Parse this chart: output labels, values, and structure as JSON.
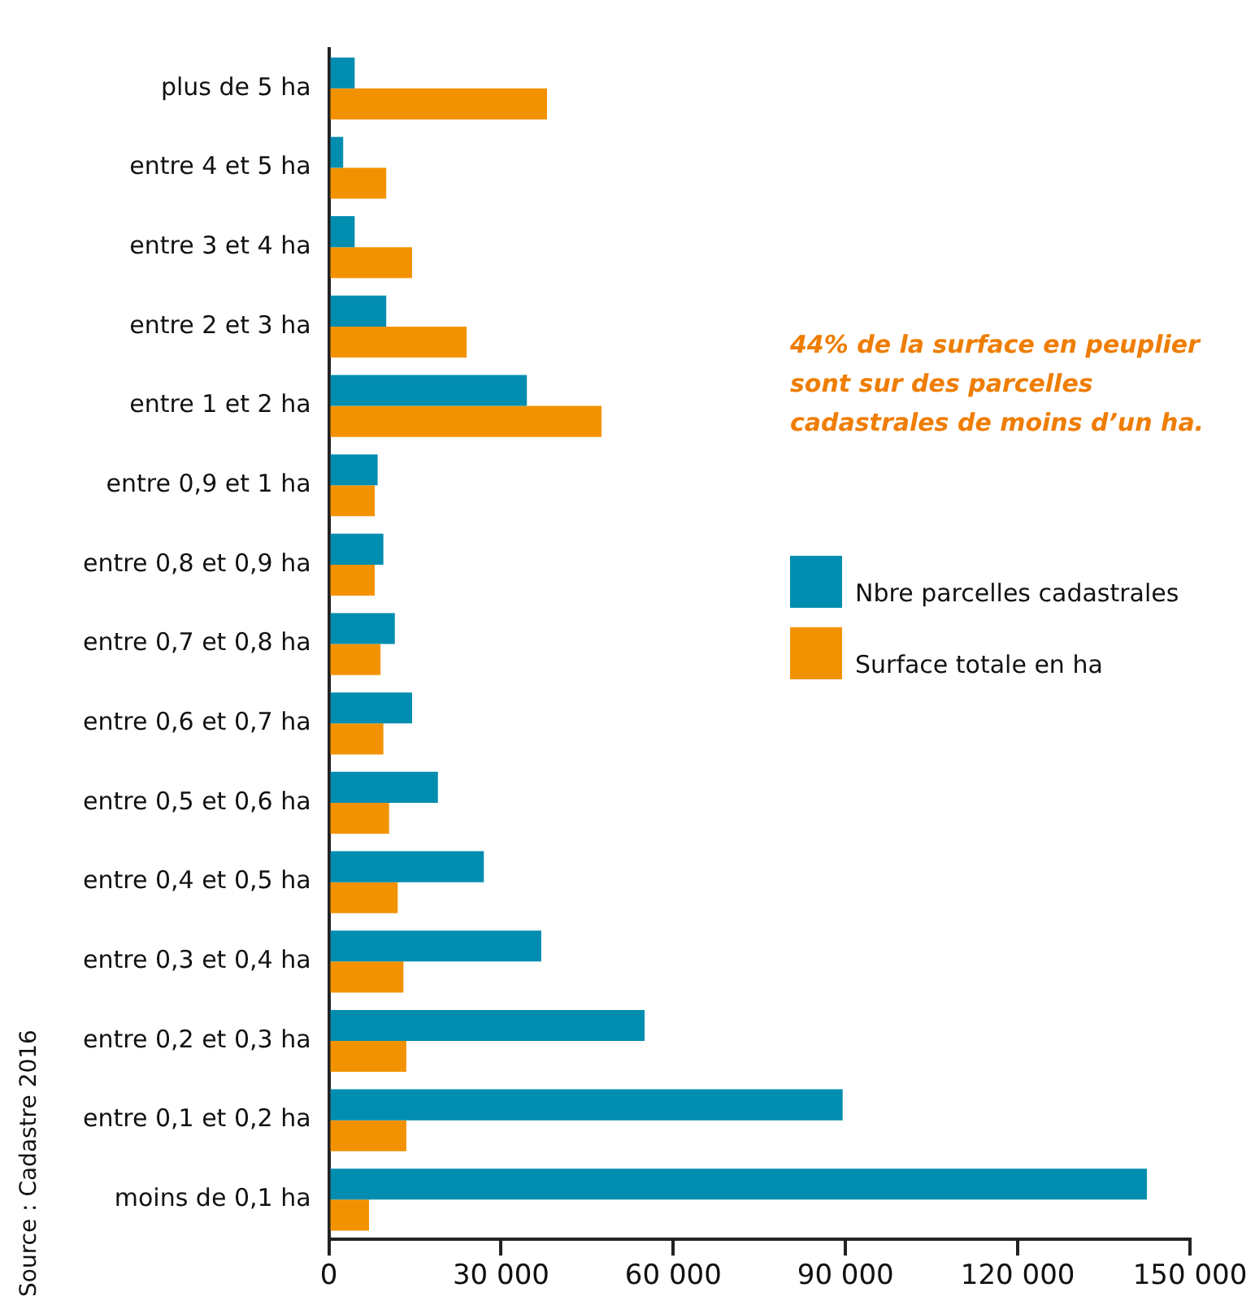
{
  "chart_data": {
    "type": "bar",
    "orientation": "horizontal",
    "categories": [
      "plus de 5 ha",
      "entre 4 et 5 ha",
      "entre 3 et 4 ha",
      "entre 2 et 3 ha",
      "entre 1 et 2 ha",
      "entre 0,9 et 1 ha",
      "entre 0,8 et 0,9 ha",
      "entre 0,7 et 0,8 ha",
      "entre 0,6 et 0,7 ha",
      "entre 0,5 et 0,6 ha",
      "entre 0,4 et 0,5 ha",
      "entre 0,3 et 0,4 ha",
      "entre 0,2 et 0,3 ha",
      "entre 0,1 et 0,2 ha",
      "moins de 0,1 ha"
    ],
    "series": [
      {
        "name": "Nbre parcelles cadastrales",
        "color": "#008db0",
        "values": [
          4500,
          2500,
          4500,
          10000,
          34500,
          8500,
          9500,
          11500,
          14500,
          19000,
          27000,
          37000,
          55000,
          89500,
          142500
        ]
      },
      {
        "name": "Surface totale en ha",
        "color": "#f39200",
        "values": [
          38000,
          10000,
          14500,
          24000,
          47500,
          8000,
          8000,
          9000,
          9500,
          10500,
          12000,
          13000,
          13500,
          13500,
          7000
        ]
      }
    ],
    "xlim": [
      0,
      150000
    ],
    "xticks": [
      0,
      {
        "value": 30000,
        "label": "30 000"
      },
      {
        "value": 60000,
        "label": "60 000"
      },
      {
        "value": 90000,
        "label": "90 000"
      },
      {
        "value": 120000,
        "label": "120 000"
      },
      {
        "value": 150000,
        "label": "150 000"
      }
    ],
    "grid": false,
    "legend": "right",
    "annotations": [
      "44% de la surface en peuplier sont sur des parcelles cadastrales de moins d’un ha.",
      "Source : Cadastre 2016"
    ]
  }
}
